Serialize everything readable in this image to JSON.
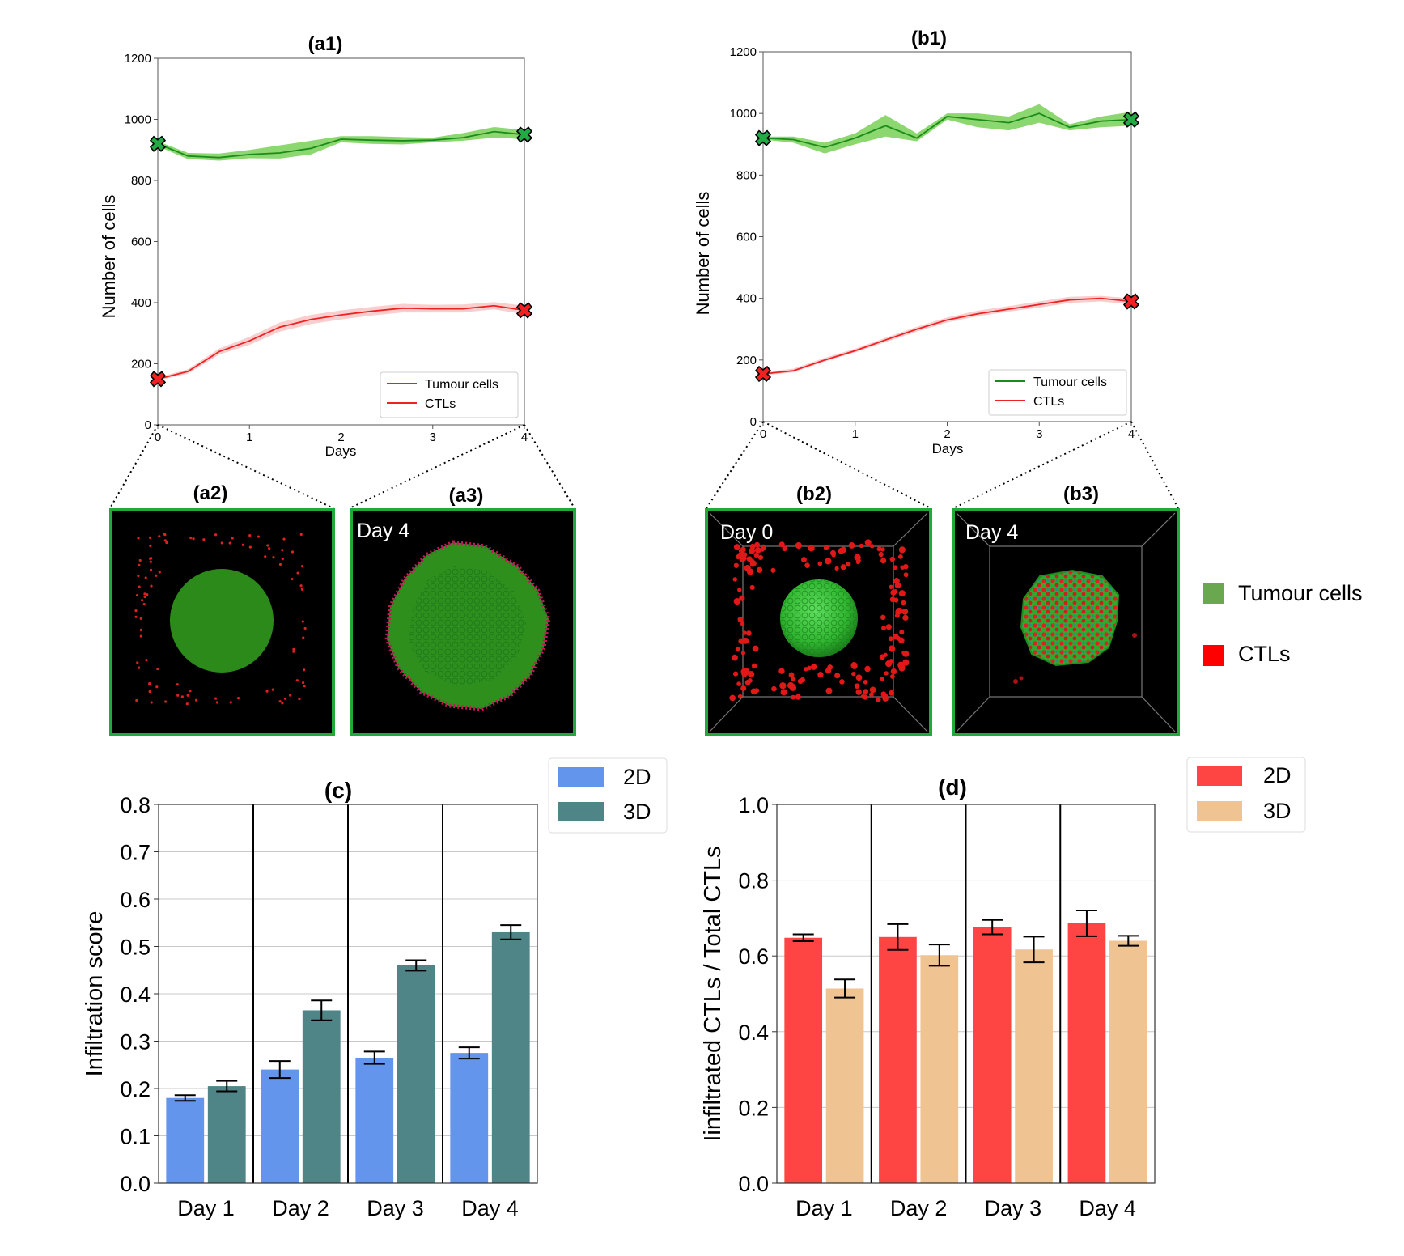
{
  "colors": {
    "tumour_line": "#1a8c1a",
    "tumour_band": "#7fd35f",
    "ctl_line": "#ee2222",
    "ctl_band": "#f4a6a6",
    "bar_2d_c": "#6495ed",
    "bar_3d_c": "#4f8587",
    "bar_2d_d": "#ff4444",
    "bar_3d_d": "#efc392",
    "panel_border": "#1faa3a",
    "marker_green": "#22aa44",
    "marker_red": "#ee2222"
  },
  "chart_data": [
    {
      "id": "a1",
      "type": "line",
      "title": "(a1)",
      "xlabel": "Days",
      "ylabel": "Number of cells",
      "xlim": [
        0,
        4
      ],
      "ylim": [
        0,
        1200
      ],
      "xticks": [
        "0",
        "1",
        "2",
        "3",
        "4"
      ],
      "yticks": [
        "0",
        "200",
        "400",
        "600",
        "800",
        "1000",
        "1200"
      ],
      "legend": [
        "Tumour cells",
        "CTLs"
      ],
      "legend_position": "lower-right",
      "x": [
        0,
        0.33,
        0.67,
        1.0,
        1.33,
        1.67,
        2.0,
        2.33,
        2.67,
        3.0,
        3.33,
        3.67,
        4.0
      ],
      "series": [
        {
          "name": "Tumour cells",
          "values": [
            920,
            880,
            875,
            885,
            890,
            905,
            935,
            932,
            930,
            932,
            940,
            960,
            950
          ],
          "low": [
            912,
            870,
            865,
            873,
            872,
            885,
            925,
            920,
            918,
            925,
            930,
            940,
            935
          ],
          "high": [
            928,
            890,
            888,
            900,
            915,
            930,
            945,
            945,
            942,
            940,
            955,
            975,
            965
          ]
        },
        {
          "name": "CTLs",
          "values": [
            150,
            175,
            240,
            275,
            320,
            345,
            360,
            372,
            382,
            380,
            380,
            390,
            375
          ],
          "low": [
            145,
            168,
            230,
            262,
            305,
            330,
            345,
            358,
            368,
            368,
            368,
            378,
            362
          ],
          "high": [
            155,
            182,
            250,
            288,
            335,
            360,
            375,
            386,
            396,
            393,
            394,
            402,
            390
          ]
        }
      ],
      "end_markers": [
        {
          "x": 0,
          "y": 920
        },
        {
          "x": 4,
          "y": 950
        },
        {
          "x": 0,
          "y": 150
        },
        {
          "x": 4,
          "y": 375
        }
      ]
    },
    {
      "id": "b1",
      "type": "line",
      "title": "(b1)",
      "xlabel": "Days",
      "ylabel": "Number of cells",
      "xlim": [
        0,
        4
      ],
      "ylim": [
        0,
        1200
      ],
      "xticks": [
        "0",
        "1",
        "2",
        "3",
        "4"
      ],
      "yticks": [
        "0",
        "200",
        "400",
        "600",
        "800",
        "1000",
        "1200"
      ],
      "legend": [
        "Tumour cells",
        "CTLs"
      ],
      "legend_position": "lower-right",
      "x": [
        0,
        0.33,
        0.67,
        1.0,
        1.33,
        1.67,
        2.0,
        2.33,
        2.67,
        3.0,
        3.33,
        3.67,
        4.0
      ],
      "series": [
        {
          "name": "Tumour cells",
          "values": [
            920,
            915,
            890,
            920,
            960,
            920,
            990,
            980,
            970,
            1000,
            955,
            975,
            980
          ],
          "low": [
            915,
            905,
            870,
            900,
            925,
            910,
            980,
            955,
            945,
            970,
            945,
            955,
            960
          ],
          "high": [
            925,
            925,
            905,
            935,
            995,
            935,
            1000,
            1000,
            990,
            1030,
            965,
            990,
            1005
          ]
        },
        {
          "name": "CTLs",
          "values": [
            155,
            165,
            200,
            230,
            265,
            300,
            330,
            350,
            365,
            380,
            395,
            400,
            390
          ],
          "low": [
            150,
            160,
            195,
            225,
            258,
            292,
            322,
            342,
            357,
            370,
            385,
            390,
            380
          ],
          "high": [
            160,
            172,
            207,
            237,
            272,
            308,
            338,
            360,
            375,
            390,
            405,
            408,
            400
          ]
        }
      ],
      "end_markers": [
        {
          "x": 0,
          "y": 920
        },
        {
          "x": 4,
          "y": 980
        },
        {
          "x": 0,
          "y": 155
        },
        {
          "x": 4,
          "y": 390
        }
      ]
    },
    {
      "id": "c",
      "type": "bar",
      "title": "(c)",
      "xlabel": "",
      "ylabel": "Infiltration score",
      "ylim": [
        0,
        0.8
      ],
      "yticks": [
        "0.0",
        "0.1",
        "0.2",
        "0.3",
        "0.4",
        "0.5",
        "0.6",
        "0.7",
        "0.8"
      ],
      "categories": [
        "Day 1",
        "Day 2",
        "Day 3",
        "Day 4"
      ],
      "legend_position": "upper-right-outside",
      "series": [
        {
          "name": "2D",
          "values": [
            0.18,
            0.24,
            0.265,
            0.275
          ],
          "errors": [
            0.006,
            0.018,
            0.013,
            0.012
          ]
        },
        {
          "name": "3D",
          "values": [
            0.205,
            0.365,
            0.46,
            0.53
          ],
          "errors": [
            0.011,
            0.021,
            0.011,
            0.015
          ]
        }
      ]
    },
    {
      "id": "d",
      "type": "bar",
      "title": "(d)",
      "xlabel": "",
      "ylabel": "Iinfiltrated CTLs / Total CTLs",
      "ylim": [
        0,
        1.0
      ],
      "yticks": [
        "0.0",
        "0.2",
        "0.4",
        "0.6",
        "0.8",
        "1.0"
      ],
      "categories": [
        "Day 1",
        "Day 2",
        "Day 3",
        "Day 4"
      ],
      "legend_position": "upper-right-outside",
      "series": [
        {
          "name": "2D",
          "values": [
            0.648,
            0.65,
            0.676,
            0.686
          ],
          "errors": [
            0.009,
            0.034,
            0.019,
            0.034
          ]
        },
        {
          "name": "3D",
          "values": [
            0.514,
            0.602,
            0.617,
            0.64
          ],
          "errors": [
            0.024,
            0.028,
            0.034,
            0.013
          ]
        }
      ]
    }
  ],
  "snapshots": {
    "a2": {
      "label": "(a2)",
      "day": ""
    },
    "a3": {
      "label": "(a3)",
      "day": "Day 4"
    },
    "b2": {
      "label": "(b2)",
      "day": "Day 0"
    },
    "b3": {
      "label": "(b3)",
      "day": "Day 4"
    }
  },
  "side_legend": [
    {
      "label": "Tumour cells",
      "color": "#6aa84f"
    },
    {
      "label": "CTLs",
      "color": "#ff0000"
    }
  ]
}
